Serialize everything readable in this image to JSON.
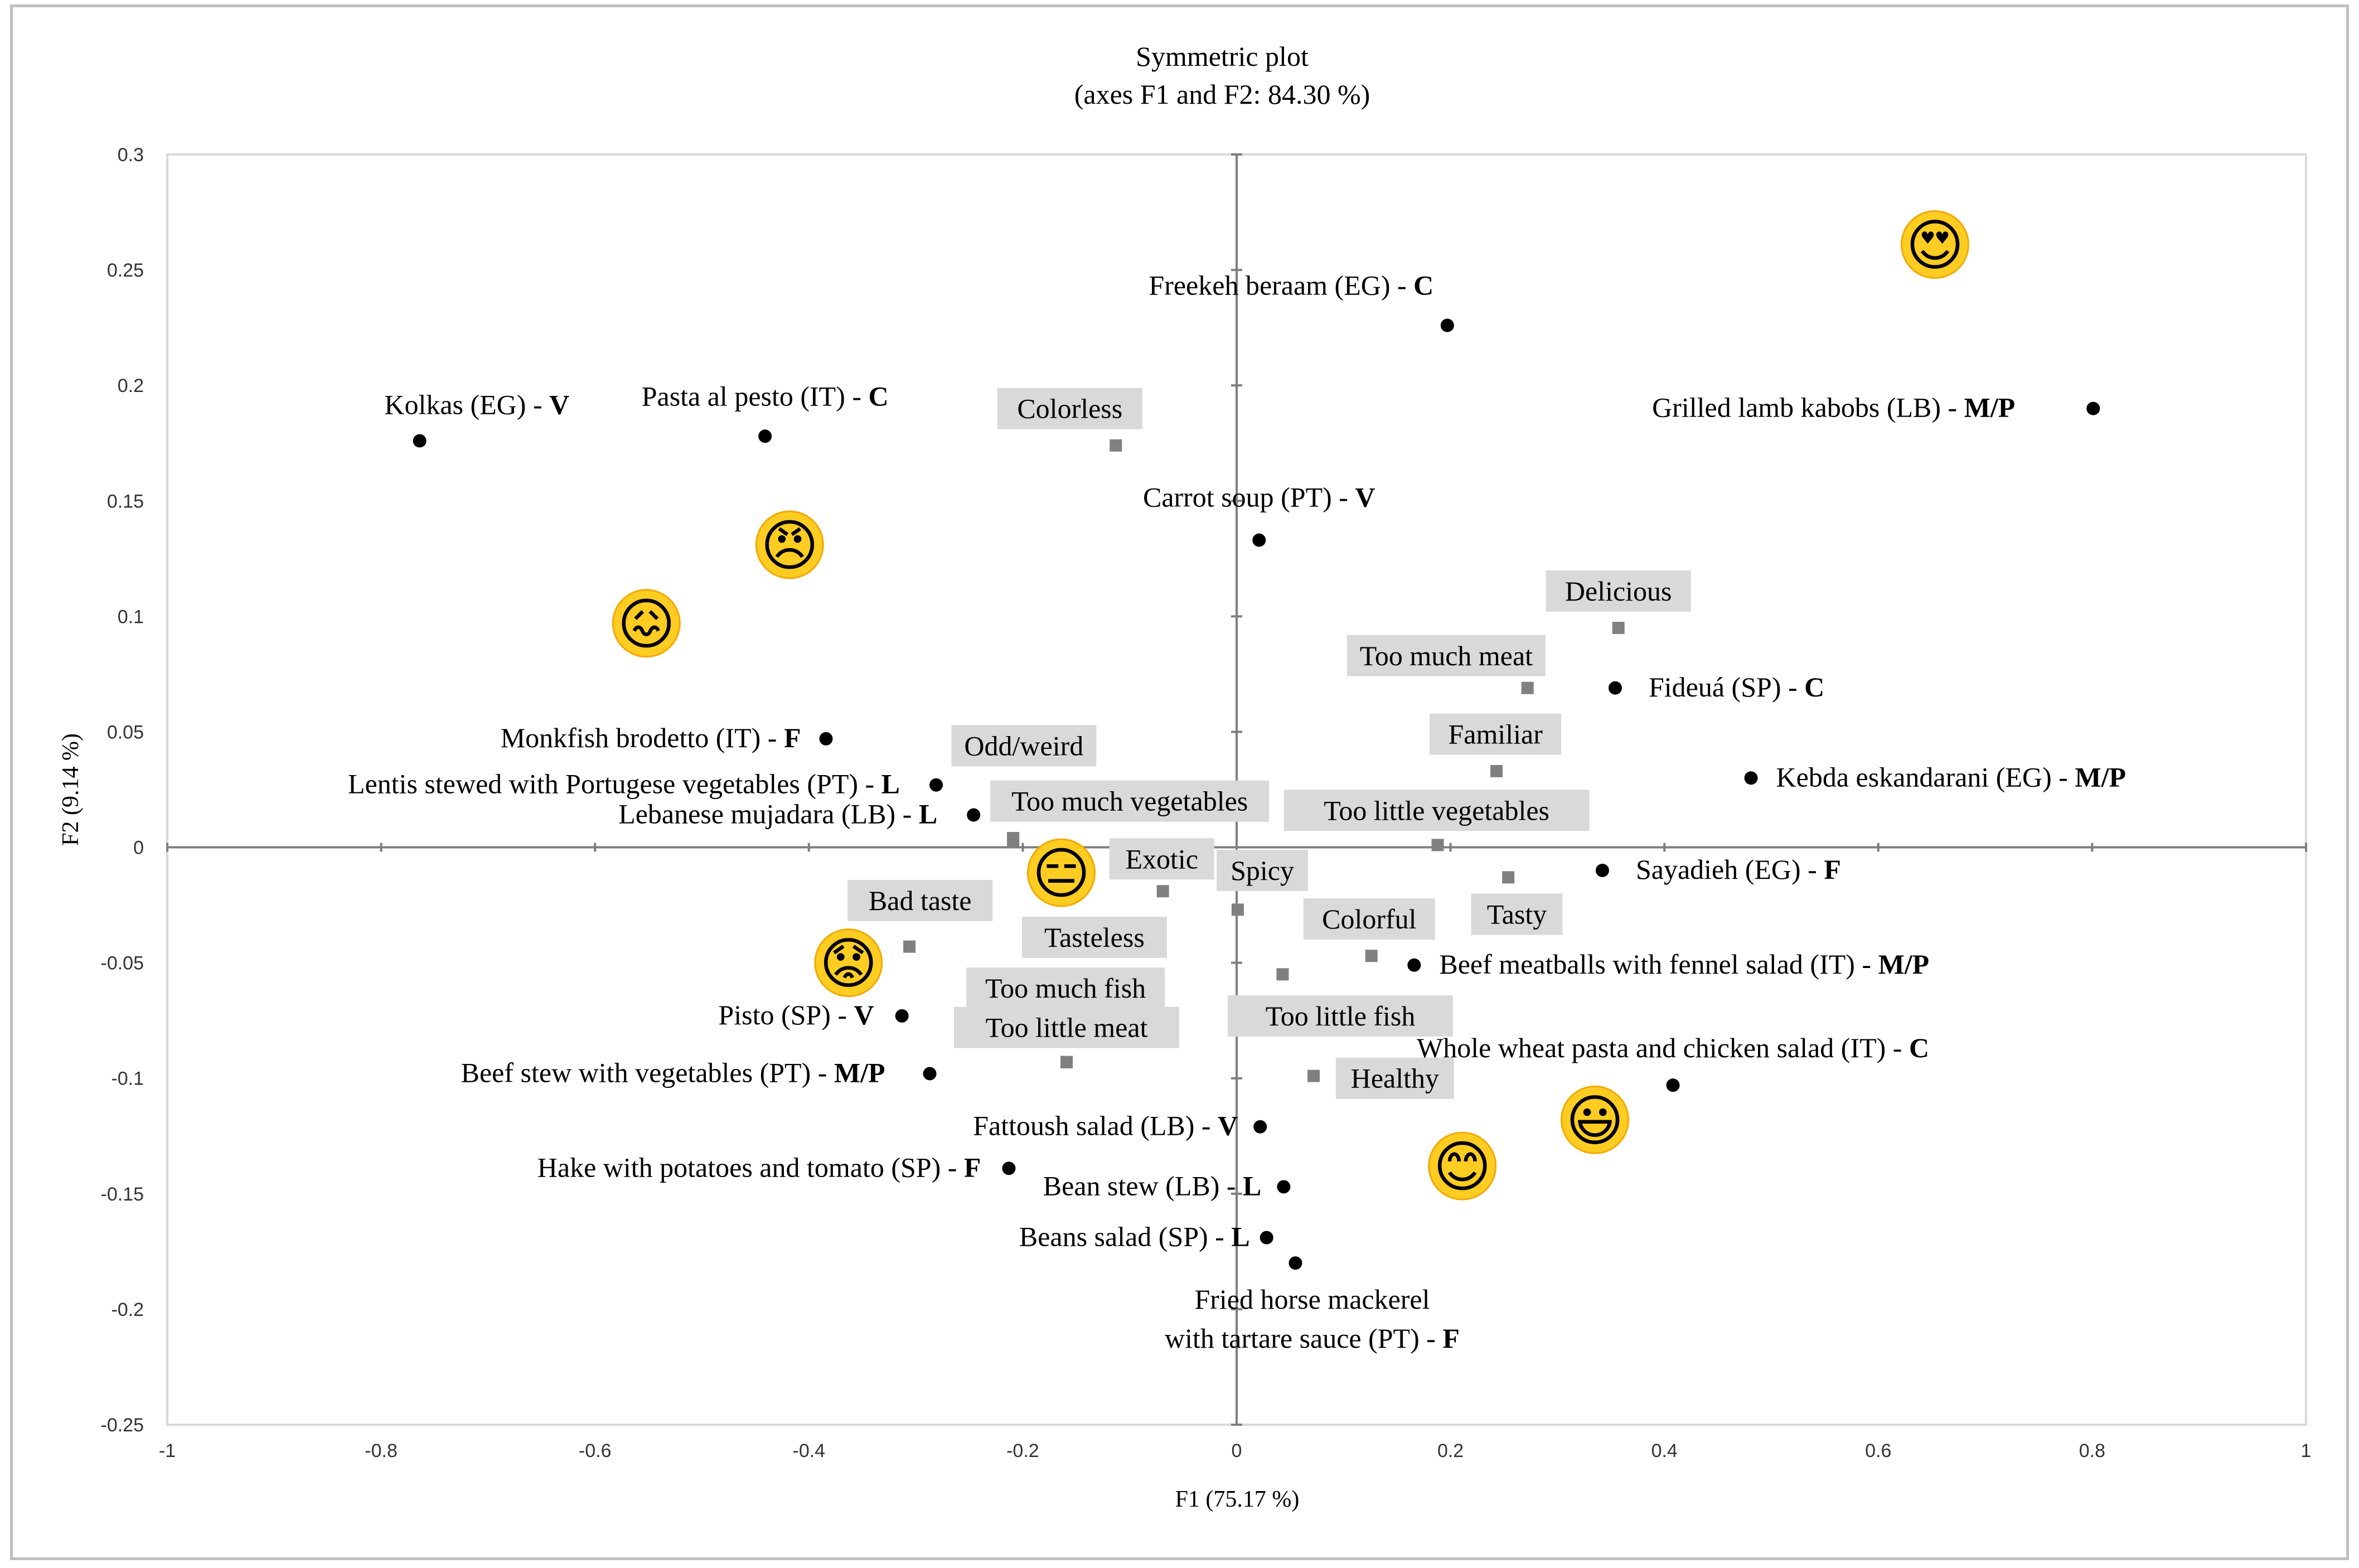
{
  "chart_data": {
    "type": "scatter",
    "title": "Symmetric plot",
    "subtitle": "(axes F1 and F2: 84.30 %)",
    "xlabel": "F1 (75.17 %)",
    "ylabel": "F2 (9.14 %)",
    "xlim": [
      -1,
      1
    ],
    "ylim": [
      -0.25,
      0.3
    ],
    "xticks": [
      "-1",
      "-0.8",
      "-0.6",
      "-0.4",
      "-0.2",
      "0",
      "0.2",
      "0.4",
      "0.6",
      "0.8",
      "1"
    ],
    "yticks": [
      "0.3",
      "0.25",
      "0.2",
      "0.15",
      "0.1",
      "0.05",
      "0",
      "-0.05",
      "-0.1",
      "-0.15",
      "-0.2",
      "-0.25"
    ],
    "grid": false,
    "series": [
      {
        "marker": "circle",
        "color": "#000000",
        "points": [
          {
            "label": "Freekeh beraam (EG) - ",
            "tag": "C",
            "x": 0.197,
            "y": 0.226
          },
          {
            "label": "Grilled lamb kabobs (LB) - ",
            "tag": "M/P",
            "x": 0.801,
            "y": 0.19
          },
          {
            "label": "Kolkas (EG) - ",
            "tag": "V",
            "x": -0.764,
            "y": 0.176
          },
          {
            "label": "Pasta al pesto (IT) - ",
            "tag": "C",
            "x": -0.441,
            "y": 0.178
          },
          {
            "label": "Carrot soup (PT) - ",
            "tag": "V",
            "x": 0.021,
            "y": 0.133
          },
          {
            "label": "Fideuá (SP) - ",
            "tag": "C",
            "x": 0.354,
            "y": 0.069
          },
          {
            "label": "Kebda eskandarani (EG) - ",
            "tag": "M/P",
            "x": 0.481,
            "y": 0.03
          },
          {
            "label": "Monkfish brodetto (IT) - ",
            "tag": "F",
            "x": -0.384,
            "y": 0.047
          },
          {
            "label": "Lentis stewed with Portugese vegetables (PT) - ",
            "tag": "L",
            "x": -0.281,
            "y": 0.027
          },
          {
            "label": "Lebanese mujadara (LB) - ",
            "tag": "L",
            "x": -0.246,
            "y": 0.014
          },
          {
            "label": "Sayadieh (EG) - ",
            "tag": "F",
            "x": 0.342,
            "y": -0.01
          },
          {
            "label": "Beef meatballs with fennel salad (IT) - ",
            "tag": "M/P",
            "x": 0.166,
            "y": -0.051
          },
          {
            "label": "Pisto (SP) - ",
            "tag": "V",
            "x": -0.313,
            "y": -0.073
          },
          {
            "label": "Beef stew with vegetables (PT) - ",
            "tag": "M/P",
            "x": -0.287,
            "y": -0.098
          },
          {
            "label": "Whole wheat pasta and chicken salad (IT) - ",
            "tag": "C",
            "x": 0.408,
            "y": -0.103
          },
          {
            "label": "Fattoush salad (LB) - ",
            "tag": "V",
            "x": 0.022,
            "y": -0.121
          },
          {
            "label": "Hake with potatoes and tomato (SP) - ",
            "tag": "F",
            "x": -0.213,
            "y": -0.139
          },
          {
            "label": "Bean stew (LB) - ",
            "tag": "L",
            "x": 0.044,
            "y": -0.147
          },
          {
            "label": "Beans salad (SP) - ",
            "tag": "L",
            "x": 0.028,
            "y": -0.169
          },
          {
            "label": "Fried horse mackerel",
            "label2": "with tartare sauce (PT) - ",
            "tag": "F",
            "x": 0.055,
            "y": -0.18
          }
        ]
      },
      {
        "marker": "square",
        "color": "#808080",
        "points": [
          {
            "label": "Colorless",
            "x": -0.113,
            "y": 0.174
          },
          {
            "label": "Delicious",
            "x": 0.357,
            "y": 0.095
          },
          {
            "label": "Too much meat",
            "x": 0.272,
            "y": 0.069
          },
          {
            "label": "Familiar",
            "x": 0.243,
            "y": 0.033
          },
          {
            "label": "Odd/weird",
            "x": -0.209,
            "y": 0.003
          },
          {
            "label": "Too much vegetables",
            "x": -0.209,
            "y": 0.004
          },
          {
            "label": "Too little vegetables",
            "x": 0.188,
            "y": 0.001
          },
          {
            "label": "Exotic",
            "x": -0.069,
            "y": -0.019
          },
          {
            "label": "Spicy",
            "x": 0.001,
            "y": -0.027
          },
          {
            "label": "Tasty",
            "x": 0.254,
            "y": -0.013
          },
          {
            "label": "Colorful",
            "x": 0.126,
            "y": -0.047
          },
          {
            "label": "Bad taste",
            "x": -0.306,
            "y": -0.043
          },
          {
            "label": "Tasteless",
            "x": -0.159,
            "y": -0.093
          },
          {
            "label": "Too much fish",
            "x": -0.159,
            "y": -0.093
          },
          {
            "label": "Too little meat",
            "x": -0.159,
            "y": -0.093
          },
          {
            "label": "Too little fish",
            "x": 0.043,
            "y": -0.055
          },
          {
            "label": "Healthy",
            "x": 0.072,
            "y": -0.099
          }
        ]
      }
    ],
    "emojis": [
      {
        "icon": "heart-eyes-face-icon",
        "glyph": "😍",
        "x": 0.653,
        "y": 0.261
      },
      {
        "icon": "angry-face-icon",
        "glyph": "😠",
        "x": -0.418,
        "y": 0.131
      },
      {
        "icon": "confounded-face-icon",
        "glyph": "😖",
        "x": -0.552,
        "y": 0.097
      },
      {
        "icon": "expressionless-face-icon",
        "glyph": "😑",
        "x": -0.164,
        "y": -0.011
      },
      {
        "icon": "frowning-face-icon",
        "glyph": "😟",
        "x": -0.363,
        "y": -0.05
      },
      {
        "icon": "grinning-face-icon",
        "glyph": "😃",
        "x": 0.335,
        "y": -0.118
      },
      {
        "icon": "smiling-face-icon",
        "glyph": "😊",
        "x": 0.211,
        "y": -0.138
      }
    ]
  }
}
